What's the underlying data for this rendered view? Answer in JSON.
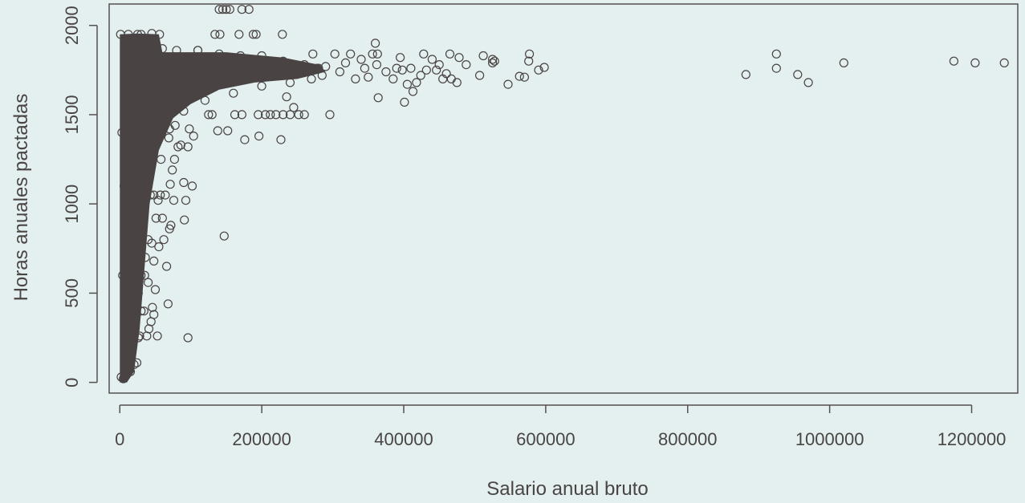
{
  "chart_data": {
    "type": "scatter",
    "xlabel": "Salario anual bruto",
    "ylabel": "Horas anuales pactadas",
    "xlim": [
      -15000,
      1265000
    ],
    "ylim": [
      -60,
      2120
    ],
    "x_ticks": [
      0,
      200000,
      400000,
      600000,
      800000,
      1000000,
      1200000
    ],
    "x_tick_labels": [
      "0",
      "200000",
      "400000",
      "600000",
      "800000",
      "1000000",
      "1200000"
    ],
    "y_ticks": [
      0,
      500,
      1000,
      1500,
      2000
    ],
    "y_tick_labels": [
      "0",
      "500",
      "1000",
      "1500",
      "2000"
    ],
    "marker": "open-circle",
    "colors": {
      "points": "#4a4343",
      "axes": "#555050",
      "background": "#e3f0ef"
    },
    "points": [
      [
        1246000,
        1790
      ],
      [
        1205000,
        1790
      ],
      [
        1175000,
        1800
      ],
      [
        1020000,
        1790
      ],
      [
        970000,
        1680
      ],
      [
        955000,
        1725
      ],
      [
        925000,
        1760
      ],
      [
        925000,
        1840
      ],
      [
        882000,
        1725
      ],
      [
        598000,
        1765
      ],
      [
        590000,
        1750
      ],
      [
        577000,
        1840
      ],
      [
        576000,
        1800
      ],
      [
        570000,
        1710
      ],
      [
        563000,
        1715
      ],
      [
        547000,
        1670
      ],
      [
        528000,
        1800
      ],
      [
        525000,
        1790
      ],
      [
        525000,
        1810
      ],
      [
        512000,
        1830
      ],
      [
        507000,
        1720
      ],
      [
        488000,
        1780
      ],
      [
        478000,
        1820
      ],
      [
        475000,
        1680
      ],
      [
        467000,
        1700
      ],
      [
        465000,
        1840
      ],
      [
        460000,
        1730
      ],
      [
        455000,
        1700
      ],
      [
        450000,
        1780
      ],
      [
        446000,
        1750
      ],
      [
        440000,
        1810
      ],
      [
        432000,
        1750
      ],
      [
        428000,
        1840
      ],
      [
        424000,
        1720
      ],
      [
        418000,
        1680
      ],
      [
        413000,
        1630
      ],
      [
        410000,
        1760
      ],
      [
        405000,
        1670
      ],
      [
        401000,
        1570
      ],
      [
        398000,
        1750
      ],
      [
        395000,
        1820
      ],
      [
        390000,
        1760
      ],
      [
        385000,
        1700
      ],
      [
        375000,
        1740
      ],
      [
        364000,
        1595
      ],
      [
        363000,
        1840
      ],
      [
        362000,
        1780
      ],
      [
        360000,
        1900
      ],
      [
        356000,
        1840
      ],
      [
        350000,
        1710
      ],
      [
        345000,
        1760
      ],
      [
        340000,
        1810
      ],
      [
        332000,
        1700
      ],
      [
        325000,
        1840
      ],
      [
        318000,
        1790
      ],
      [
        310000,
        1740
      ],
      [
        303000,
        1840
      ],
      [
        296000,
        1500
      ],
      [
        290000,
        1770
      ],
      [
        285000,
        1720
      ],
      [
        278000,
        1760
      ],
      [
        272000,
        1840
      ],
      [
        260000,
        1500
      ],
      [
        252000,
        1500
      ],
      [
        245000,
        1540
      ],
      [
        240000,
        1500
      ],
      [
        235000,
        1600
      ],
      [
        230000,
        1500
      ],
      [
        229000,
        1950
      ],
      [
        227000,
        1360
      ],
      [
        220000,
        1500
      ],
      [
        212000,
        1500
      ],
      [
        205000,
        1500
      ],
      [
        195000,
        1500
      ],
      [
        196000,
        1380
      ],
      [
        192000,
        1950
      ],
      [
        188000,
        1950
      ],
      [
        182000,
        2090
      ],
      [
        176000,
        1360
      ],
      [
        172000,
        1500
      ],
      [
        172000,
        2090
      ],
      [
        168000,
        1950
      ],
      [
        162000,
        1500
      ],
      [
        155000,
        2090
      ],
      [
        152000,
        1410
      ],
      [
        150000,
        2090
      ],
      [
        147000,
        820
      ],
      [
        145000,
        2090
      ],
      [
        141000,
        1950
      ],
      [
        140000,
        2090
      ],
      [
        138000,
        1410
      ],
      [
        134000,
        1950
      ],
      [
        130000,
        1500
      ],
      [
        125000,
        1500
      ],
      [
        118000,
        1750
      ],
      [
        110000,
        1860
      ],
      [
        104000,
        1380
      ],
      [
        102000,
        1100
      ],
      [
        98000,
        1420
      ],
      [
        96000,
        1320
      ],
      [
        96000,
        250
      ],
      [
        93000,
        1020
      ],
      [
        91000,
        910
      ],
      [
        90000,
        1120
      ],
      [
        88000,
        1800
      ],
      [
        86000,
        1330
      ],
      [
        82000,
        1320
      ],
      [
        78000,
        1440
      ],
      [
        77000,
        1250
      ],
      [
        76000,
        1020
      ],
      [
        74000,
        1190
      ],
      [
        72000,
        880
      ],
      [
        71000,
        1110
      ],
      [
        70000,
        860
      ],
      [
        69000,
        1370
      ],
      [
        68000,
        440
      ],
      [
        66000,
        650
      ],
      [
        64000,
        1050
      ],
      [
        62000,
        800
      ],
      [
        60000,
        920
      ],
      [
        57000,
        1050
      ],
      [
        56000,
        1950
      ],
      [
        55000,
        760
      ],
      [
        54000,
        1020
      ],
      [
        53000,
        260
      ],
      [
        51000,
        920
      ],
      [
        50000,
        520
      ],
      [
        48000,
        680
      ],
      [
        48000,
        380
      ],
      [
        46000,
        420
      ],
      [
        45000,
        780
      ],
      [
        44000,
        340
      ],
      [
        43000,
        1050
      ],
      [
        41000,
        300
      ],
      [
        40000,
        560
      ],
      [
        38000,
        260
      ],
      [
        37000,
        1050
      ],
      [
        36000,
        700
      ],
      [
        34000,
        400
      ],
      [
        32000,
        1200
      ],
      [
        31000,
        920
      ],
      [
        30000,
        600
      ],
      [
        28000,
        260
      ],
      [
        28000,
        1050
      ],
      [
        27000,
        820
      ],
      [
        26000,
        500
      ],
      [
        25000,
        1950
      ],
      [
        24000,
        110
      ],
      [
        22000,
        400
      ],
      [
        20000,
        700
      ],
      [
        18000,
        1100
      ],
      [
        16000,
        260
      ],
      [
        15000,
        60
      ],
      [
        14000,
        1500
      ],
      [
        13000,
        850
      ],
      [
        12000,
        1950
      ],
      [
        11000,
        400
      ],
      [
        10000,
        150
      ],
      [
        9000,
        1700
      ],
      [
        8000,
        300
      ],
      [
        7000,
        40
      ],
      [
        6000,
        1100
      ],
      [
        5000,
        20
      ],
      [
        4000,
        600
      ],
      [
        3000,
        1400
      ],
      [
        2000,
        30
      ],
      [
        1000,
        1950
      ]
    ]
  }
}
